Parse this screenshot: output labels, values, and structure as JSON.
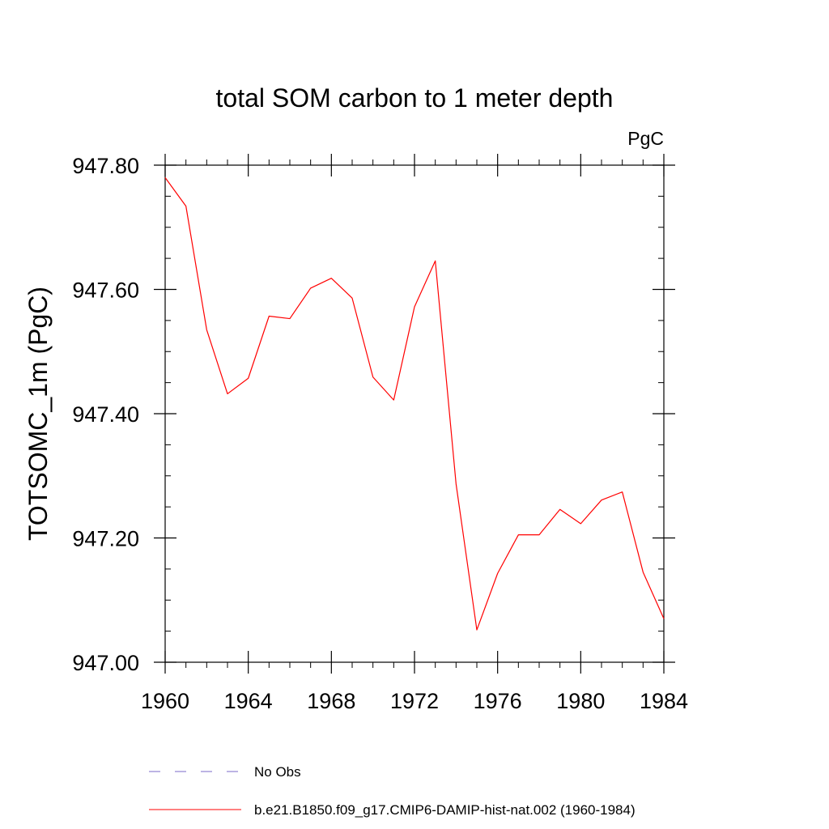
{
  "chart_data": {
    "type": "line",
    "title": "total SOM carbon to 1 meter depth",
    "units": "PgC",
    "ylabel": "TOTSOMC_1m  (PgC)",
    "xlabel": "",
    "xlim": [
      1960,
      1984
    ],
    "ylim": [
      947.0,
      947.8
    ],
    "x_ticks": [
      1960,
      1964,
      1968,
      1972,
      1976,
      1980,
      1984
    ],
    "x_tick_labels": [
      "1960",
      "1964",
      "1968",
      "1972",
      "1976",
      "1980",
      "1984"
    ],
    "y_ticks": [
      947.0,
      947.2,
      947.4,
      947.6,
      947.8
    ],
    "y_tick_labels": [
      "947.00",
      "947.20",
      "947.40",
      "947.60",
      "947.80"
    ],
    "x": [
      1960,
      1961,
      1962,
      1963,
      1964,
      1965,
      1966,
      1967,
      1968,
      1969,
      1970,
      1971,
      1972,
      1973,
      1974,
      1975,
      1976,
      1977,
      1978,
      1979,
      1980,
      1981,
      1982,
      1983,
      1984
    ],
    "series": [
      {
        "name": "b.e21.B1850.f09_g17.CMIP6-DAMIP-hist-nat.002 (1960-1984)",
        "color": "#ff0000",
        "dash": "solid",
        "values": [
          947.78,
          947.734,
          947.535,
          947.432,
          947.457,
          947.557,
          947.553,
          947.602,
          947.618,
          947.586,
          947.459,
          947.422,
          947.572,
          947.646,
          947.287,
          947.052,
          947.143,
          947.205,
          947.205,
          947.246,
          947.223,
          947.261,
          947.274,
          947.145,
          947.07
        ]
      }
    ],
    "legend": {
      "placement": "bottom",
      "entries": [
        {
          "label": "No Obs",
          "color": "#7b68c8",
          "dash": "dashed"
        },
        {
          "label": "b.e21.B1850.f09_g17.CMIP6-DAMIP-hist-nat.002 (1960-1984)",
          "color": "#ff0000",
          "dash": "solid"
        }
      ]
    },
    "grid": false
  }
}
